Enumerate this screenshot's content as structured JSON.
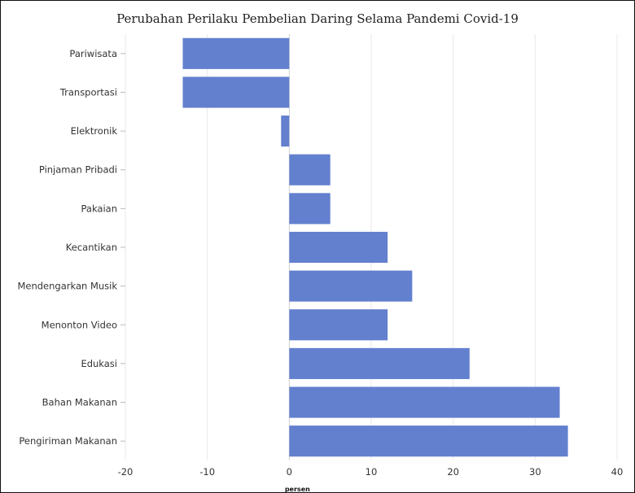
{
  "chart_data": {
    "type": "bar",
    "orientation": "horizontal",
    "title": "Perubahan Perilaku Pembelian Daring Selama Pandemi Covid-19",
    "xlabel": "persen",
    "ylabel": "",
    "xlim": [
      -20,
      40
    ],
    "xticks": [
      -20,
      -10,
      0,
      10,
      20,
      30,
      40
    ],
    "grid": true,
    "bar_color": "#6380cf",
    "categories": [
      "Pariwisata",
      "Transportasi",
      "Elektronik",
      "Pinjaman Pribadi",
      "Pakaian",
      "Kecantikan",
      "Mendengarkan Musik",
      "Menonton Video",
      "Edukasi",
      "Bahan Makanan",
      "Pengiriman Makanan"
    ],
    "values": [
      -13,
      -13,
      -1,
      5,
      5,
      12,
      15,
      12,
      22,
      33,
      34
    ]
  }
}
